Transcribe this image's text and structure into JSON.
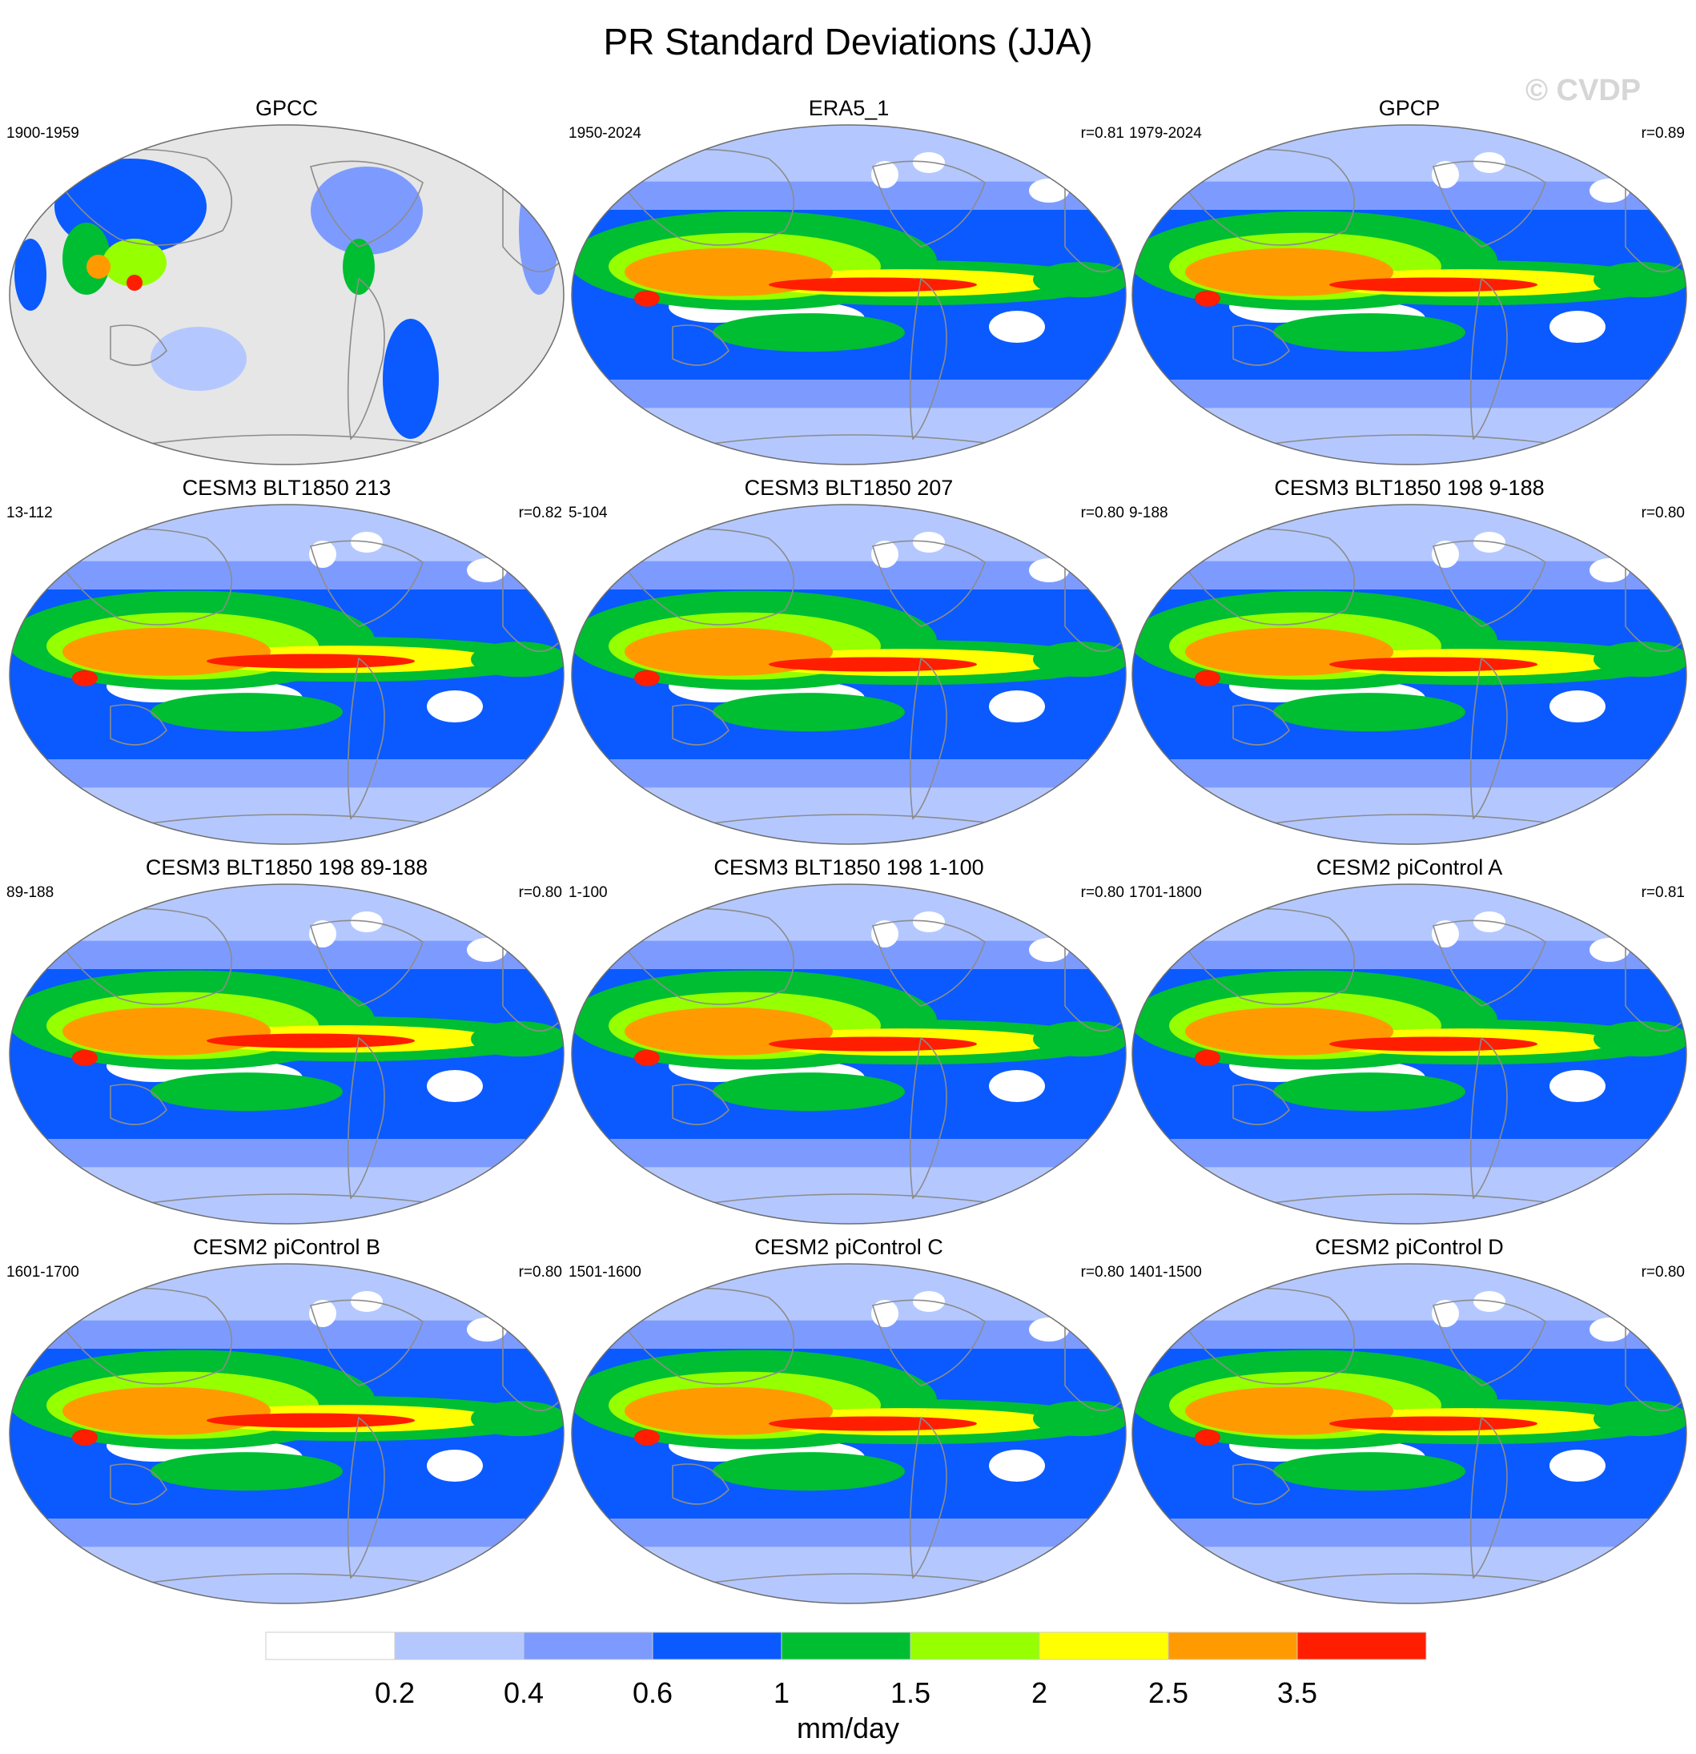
{
  "figure": {
    "title": "PR Standard Deviations (JJA)",
    "watermark": "© CVDP"
  },
  "panels": [
    {
      "title": "GPCC",
      "period": "1900-1959",
      "r": "",
      "coverage": "land-only"
    },
    {
      "title": "ERA5_1",
      "period": "1950-2024",
      "r": "r=0.81",
      "coverage": "global"
    },
    {
      "title": "GPCP",
      "period": "1979-2024",
      "r": "r=0.89",
      "coverage": "global"
    },
    {
      "title": "CESM3 BLT1850 213",
      "period": "13-112",
      "r": "r=0.82",
      "coverage": "global"
    },
    {
      "title": "CESM3 BLT1850 207",
      "period": "5-104",
      "r": "r=0.80",
      "coverage": "global"
    },
    {
      "title": "CESM3 BLT1850 198 9-188",
      "period": "9-188",
      "r": "r=0.80",
      "coverage": "global"
    },
    {
      "title": "CESM3 BLT1850 198 89-188",
      "period": "89-188",
      "r": "r=0.80",
      "coverage": "global"
    },
    {
      "title": "CESM3 BLT1850 198 1-100",
      "period": "1-100",
      "r": "r=0.80",
      "coverage": "global"
    },
    {
      "title": "CESM2 piControl A",
      "period": "1701-1800",
      "r": "r=0.81",
      "coverage": "global"
    },
    {
      "title": "CESM2 piControl B",
      "period": "1601-1700",
      "r": "r=0.80",
      "coverage": "global"
    },
    {
      "title": "CESM2 piControl C",
      "period": "1501-1600",
      "r": "r=0.80",
      "coverage": "global"
    },
    {
      "title": "CESM2 piControl D",
      "period": "1401-1500",
      "r": "r=0.80",
      "coverage": "global"
    }
  ],
  "colorbar": {
    "unit": "mm/day",
    "levels": [
      "0.2",
      "0.4",
      "0.6",
      "1",
      "1.5",
      "2",
      "2.5",
      "3.5"
    ],
    "colors": [
      "#ffffff",
      "#b4c8ff",
      "#7d9bff",
      "#0a5aff",
      "#00be32",
      "#96ff00",
      "#ffff00",
      "#ff9b00",
      "#ff1e00"
    ]
  },
  "colors": {
    "missing": "#e6e6e6",
    "coastline": "#8c8c8c",
    "border": "#6e6e6e"
  }
}
